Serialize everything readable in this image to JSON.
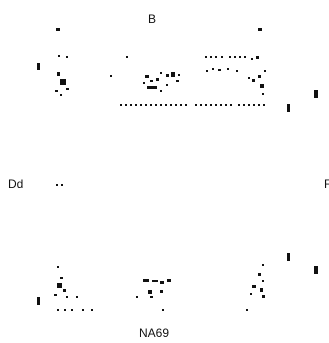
{
  "labels": {
    "top": "B",
    "left": "Dd",
    "right": "F",
    "bottom": "NA69"
  },
  "colors": {
    "ink": "#111111",
    "background": "#ffffff"
  }
}
